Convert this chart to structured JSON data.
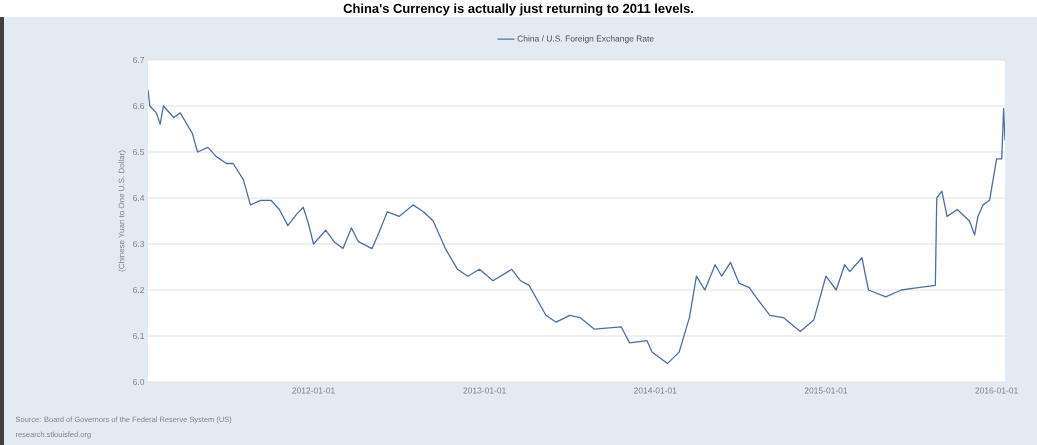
{
  "chart_data": {
    "type": "line",
    "title": "China's Currency is actually just returning to 2011 levels.",
    "ylabel": "(Chinese Yuan to One U.S. Dollar)",
    "annotations": [
      "Source: Board of Governors of the Federal Reserve System (US)",
      "research.stlouisfed.org"
    ],
    "x": [
      "2011-01-12",
      "2011-01-16",
      "2011-01-30",
      "2011-02-07",
      "2011-02-14",
      "2011-03-08",
      "2011-03-22",
      "2011-04-17",
      "2011-04-28",
      "2011-05-20",
      "2011-06-07",
      "2011-06-29",
      "2011-07-13",
      "2011-08-04",
      "2011-08-19",
      "2011-09-10",
      "2011-10-02",
      "2011-10-20",
      "2011-11-07",
      "2011-11-26",
      "2011-12-10",
      "2011-12-21",
      "2012-01-01",
      "2012-01-27",
      "2012-02-14",
      "2012-03-04",
      "2012-03-22",
      "2012-04-06",
      "2012-05-05",
      "2012-05-16",
      "2012-06-07",
      "2012-07-02",
      "2012-08-01",
      "2012-08-23",
      "2012-09-13",
      "2012-10-09",
      "2012-11-04",
      "2012-11-26",
      "2012-12-21",
      "2013-01-19",
      "2013-02-28",
      "2013-03-19",
      "2013-04-06",
      "2013-05-12",
      "2013-06-03",
      "2013-07-02",
      "2013-07-24",
      "2013-08-23",
      "2013-10-20",
      "2013-11-07",
      "2013-12-14",
      "2013-12-25",
      "2014-01-27",
      "2014-02-21",
      "2014-03-15",
      "2014-03-30",
      "2014-04-17",
      "2014-05-09",
      "2014-05-23",
      "2014-06-11",
      "2014-06-29",
      "2014-07-21",
      "2014-08-04",
      "2014-09-03",
      "2014-10-02",
      "2014-11-07",
      "2014-12-06",
      "2015-01-01",
      "2015-01-23",
      "2015-02-10",
      "2015-02-21",
      "2015-03-19",
      "2015-04-02",
      "2015-05-09",
      "2015-06-11",
      "2015-07-17",
      "2015-08-23",
      "2015-08-26",
      "2015-09-06",
      "2015-09-17",
      "2015-10-09",
      "2015-11-04",
      "2015-11-15",
      "2015-11-22",
      "2015-12-03",
      "2015-12-17",
      "2016-01-01",
      "2016-01-12",
      "2016-01-16",
      "2016-01-19"
    ],
    "series": [
      {
        "name": "China / U.S. Foreign Exchange Rate",
        "color": "#4a6fa5",
        "values": [
          6.635,
          6.6,
          6.585,
          6.56,
          6.6,
          6.575,
          6.585,
          6.54,
          6.5,
          6.51,
          6.49,
          6.475,
          6.475,
          6.44,
          6.385,
          6.395,
          6.395,
          6.375,
          6.34,
          6.365,
          6.38,
          6.345,
          6.3,
          6.33,
          6.305,
          6.29,
          6.335,
          6.305,
          6.29,
          6.315,
          6.37,
          6.36,
          6.385,
          6.37,
          6.35,
          6.29,
          6.245,
          6.23,
          6.245,
          6.22,
          6.245,
          6.22,
          6.21,
          6.145,
          6.13,
          6.145,
          6.14,
          6.115,
          6.12,
          6.085,
          6.09,
          6.065,
          6.04,
          6.065,
          6.14,
          6.23,
          6.2,
          6.255,
          6.23,
          6.26,
          6.215,
          6.205,
          6.185,
          6.145,
          6.14,
          6.11,
          6.135,
          6.23,
          6.2,
          6.255,
          6.24,
          6.27,
          6.2,
          6.185,
          6.2,
          6.205,
          6.21,
          6.4,
          6.415,
          6.36,
          6.375,
          6.35,
          6.32,
          6.36,
          6.385,
          6.395,
          6.485,
          6.485,
          6.595,
          6.525
        ]
      }
    ],
    "xlim": [
      "2011-01-12",
      "2016-01-19"
    ],
    "ylim": [
      6.0,
      6.7
    ],
    "xticks": [
      "2012-01-01",
      "2013-01-01",
      "2014-01-01",
      "2015-01-01",
      "2016-01-01"
    ],
    "yticks": [
      {
        "value": 6.0,
        "label": "6.0"
      },
      {
        "value": 6.1,
        "label": "6.1"
      },
      {
        "value": 6.2,
        "label": "6.2"
      },
      {
        "value": 6.3,
        "label": "6.3"
      },
      {
        "value": 6.4,
        "label": "6.4"
      },
      {
        "value": 6.5,
        "label": "6.5"
      },
      {
        "value": 6.6,
        "label": "6.6"
      },
      {
        "value": 6.7,
        "label": "6.7"
      }
    ],
    "grid": "y",
    "legend": "top"
  }
}
